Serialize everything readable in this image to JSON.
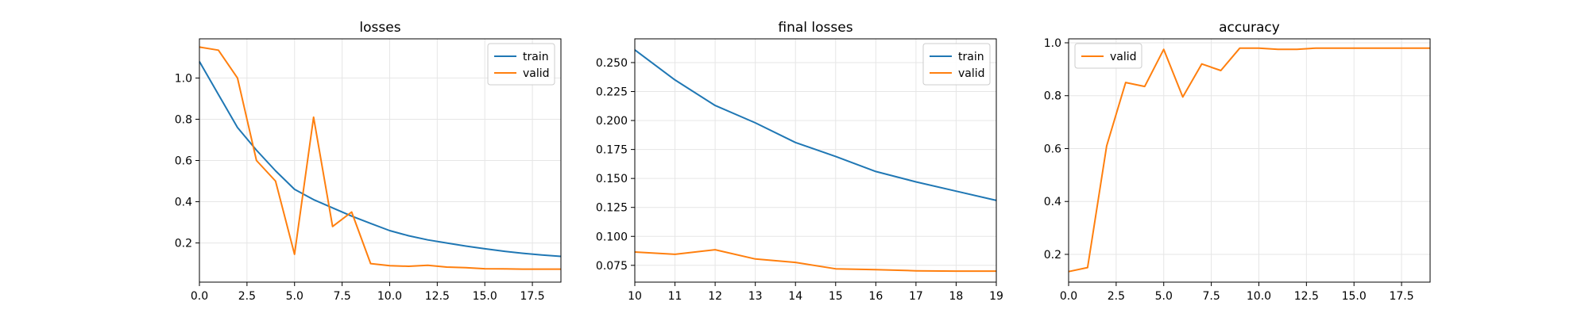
{
  "colors": {
    "train": "#1f77b4",
    "valid": "#ff7f0e",
    "grid": "#e6e6e6",
    "axis": "#000000"
  },
  "chart_data": [
    {
      "type": "line",
      "title": "losses",
      "xlabel": "",
      "ylabel": "",
      "xlim": [
        0,
        19
      ],
      "ylim": [
        0.01,
        1.19
      ],
      "xticks": [
        0,
        2.5,
        5,
        7.5,
        10,
        12.5,
        15,
        17.5
      ],
      "xtick_labels": [
        "0.0",
        "2.5",
        "5.0",
        "7.5",
        "10.0",
        "12.5",
        "15.0",
        "17.5"
      ],
      "yticks": [
        0.2,
        0.4,
        0.6,
        0.8,
        1.0
      ],
      "ytick_labels": [
        "0.2",
        "0.4",
        "0.6",
        "0.8",
        "1.0"
      ],
      "legend_position": "top-right",
      "grid": true,
      "series": [
        {
          "name": "train",
          "color_key": "train",
          "x": [
            0,
            1,
            2,
            3,
            4,
            5,
            6,
            7,
            8,
            9,
            10,
            11,
            12,
            13,
            14,
            15,
            16,
            17,
            18,
            19
          ],
          "values": [
            1.08,
            0.92,
            0.76,
            0.65,
            0.55,
            0.46,
            0.41,
            0.37,
            0.33,
            0.295,
            0.26,
            0.235,
            0.215,
            0.2,
            0.185,
            0.172,
            0.16,
            0.15,
            0.142,
            0.135
          ]
        },
        {
          "name": "valid",
          "color_key": "valid",
          "x": [
            0,
            1,
            2,
            3,
            4,
            5,
            6,
            7,
            8,
            9,
            10,
            11,
            12,
            13,
            14,
            15,
            16,
            17,
            18,
            19
          ],
          "values": [
            1.15,
            1.135,
            1.0,
            0.6,
            0.5,
            0.145,
            0.81,
            0.28,
            0.35,
            0.1,
            0.09,
            0.087,
            0.092,
            0.083,
            0.08,
            0.075,
            0.074,
            0.073,
            0.073,
            0.073
          ]
        }
      ]
    },
    {
      "type": "line",
      "title": "final losses",
      "xlabel": "",
      "ylabel": "",
      "xlim": [
        10,
        19
      ],
      "ylim": [
        0.0605,
        0.2705
      ],
      "xticks": [
        10,
        11,
        12,
        13,
        14,
        15,
        16,
        17,
        18,
        19
      ],
      "xtick_labels": [
        "10",
        "11",
        "12",
        "13",
        "14",
        "15",
        "16",
        "17",
        "18",
        "19"
      ],
      "yticks": [
        0.075,
        0.1,
        0.125,
        0.15,
        0.175,
        0.2,
        0.225,
        0.25
      ],
      "ytick_labels": [
        "0.075",
        "0.100",
        "0.125",
        "0.150",
        "0.175",
        "0.200",
        "0.225",
        "0.250"
      ],
      "legend_position": "top-right",
      "grid": true,
      "series": [
        {
          "name": "train",
          "color_key": "train",
          "x": [
            10,
            11,
            12,
            13,
            14,
            15,
            16,
            17,
            18,
            19
          ],
          "values": [
            0.261,
            0.235,
            0.213,
            0.198,
            0.181,
            0.169,
            0.156,
            0.147,
            0.139,
            0.131
          ]
        },
        {
          "name": "valid",
          "color_key": "valid",
          "x": [
            10,
            11,
            12,
            13,
            14,
            15,
            16,
            17,
            18,
            19
          ],
          "values": [
            0.0865,
            0.0845,
            0.0885,
            0.0805,
            0.0775,
            0.072,
            0.0713,
            0.0703,
            0.07,
            0.07
          ]
        }
      ]
    },
    {
      "type": "line",
      "title": "accuracy",
      "xlabel": "",
      "ylabel": "",
      "xlim": [
        0,
        19
      ],
      "ylim": [
        0.095,
        1.015
      ],
      "xticks": [
        0,
        2.5,
        5,
        7.5,
        10,
        12.5,
        15,
        17.5
      ],
      "xtick_labels": [
        "0.0",
        "2.5",
        "5.0",
        "7.5",
        "10.0",
        "12.5",
        "15.0",
        "17.5"
      ],
      "yticks": [
        0.2,
        0.4,
        0.6,
        0.8,
        1.0
      ],
      "ytick_labels": [
        "0.2",
        "0.4",
        "0.6",
        "0.8",
        "1.0"
      ],
      "legend_position": "top-left",
      "grid": true,
      "series": [
        {
          "name": "valid",
          "color_key": "valid",
          "x": [
            0,
            1,
            2,
            3,
            4,
            5,
            6,
            7,
            8,
            9,
            10,
            11,
            12,
            13,
            14,
            15,
            16,
            17,
            18,
            19
          ],
          "values": [
            0.135,
            0.15,
            0.61,
            0.85,
            0.835,
            0.975,
            0.795,
            0.92,
            0.895,
            0.98,
            0.98,
            0.975,
            0.975,
            0.98,
            0.98,
            0.98,
            0.98,
            0.98,
            0.98,
            0.98
          ]
        }
      ]
    }
  ]
}
